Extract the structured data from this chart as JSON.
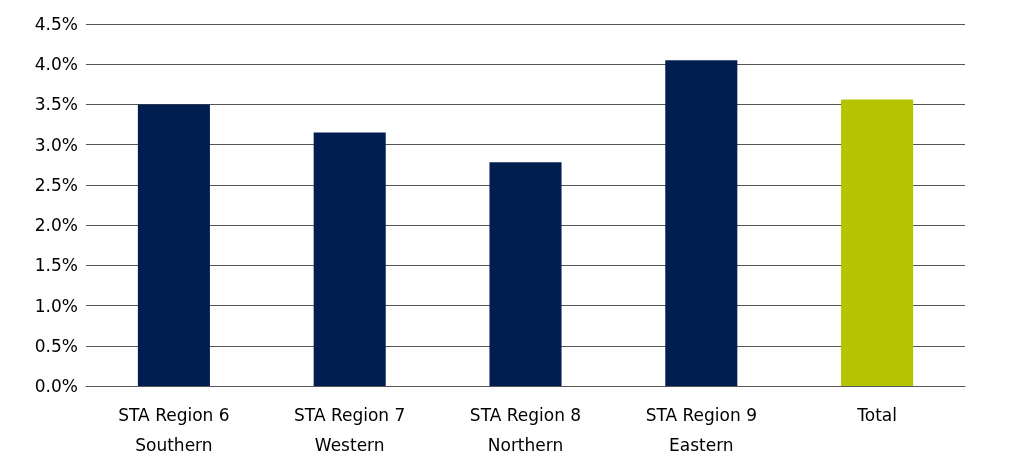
{
  "chart_data": {
    "type": "bar",
    "categories": [
      "STA Region 6\nSouthern",
      "STA Region 7\nWestern",
      "STA Region 8\nNorthern",
      "STA Region 9\nEastern",
      "Total"
    ],
    "values": [
      3.5,
      3.15,
      2.78,
      4.05,
      3.56
    ],
    "colors": [
      "#001e50",
      "#001e50",
      "#001e50",
      "#001e50",
      "#b5c400"
    ],
    "ylim": [
      0,
      4.5
    ],
    "yticks": [
      {
        "value": 0,
        "label": "0.0%"
      },
      {
        "value": 0.5,
        "label": "0.5%"
      },
      {
        "value": 1,
        "label": "1.0%"
      },
      {
        "value": 1.5,
        "label": "1.5%"
      },
      {
        "value": 2,
        "label": "2.0%"
      },
      {
        "value": 2.5,
        "label": "2.5%"
      },
      {
        "value": 3,
        "label": "3.0%"
      },
      {
        "value": 3.5,
        "label": "3.5%"
      },
      {
        "value": 4,
        "label": "4.0%"
      },
      {
        "value": 4.5,
        "label": "4.5%"
      }
    ],
    "grid": "y"
  }
}
